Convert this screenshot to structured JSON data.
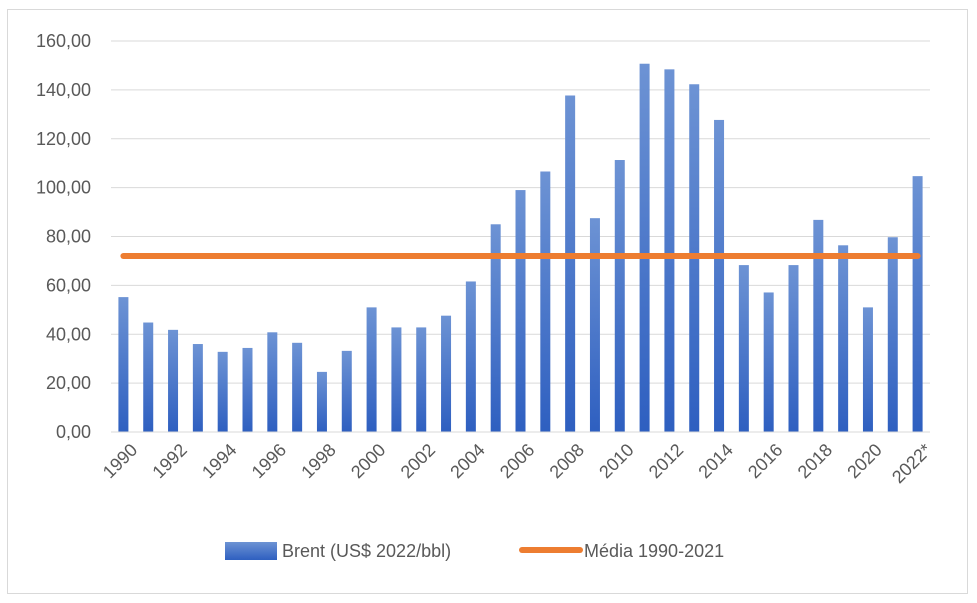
{
  "chart_data": {
    "type": "bar",
    "title": "",
    "xlabel": "",
    "ylabel": "",
    "categories": [
      "1990",
      "1991",
      "1992",
      "1993",
      "1994",
      "1995",
      "1996",
      "1997",
      "1998",
      "1999",
      "2000",
      "2001",
      "2002",
      "2003",
      "2004",
      "2005",
      "2006",
      "2007",
      "2008",
      "2009",
      "2010",
      "2011",
      "2012",
      "2013",
      "2014",
      "2015",
      "2016",
      "2017",
      "2018",
      "2019",
      "2020",
      "2021",
      "2022*"
    ],
    "x_tick_labels": [
      "1990",
      "",
      "1992",
      "",
      "1994",
      "",
      "1996",
      "",
      "1998",
      "",
      "2000",
      "",
      "2002",
      "",
      "2004",
      "",
      "2006",
      "",
      "2008",
      "",
      "2010",
      "",
      "2012",
      "",
      "2014",
      "",
      "2016",
      "",
      "2018",
      "",
      "2020",
      "",
      "2022*"
    ],
    "series": [
      {
        "name": "Brent (US$ 2022/bbl)",
        "type": "bar",
        "color": "#4472c4",
        "values": [
          55.2,
          44.8,
          41.8,
          36.0,
          32.8,
          34.4,
          40.8,
          36.5,
          24.6,
          33.2,
          51.0,
          42.8,
          42.8,
          47.6,
          61.6,
          85.0,
          99.0,
          106.6,
          137.7,
          87.5,
          111.3,
          150.7,
          148.4,
          142.3,
          127.7,
          68.3,
          57.1,
          68.3,
          86.8,
          76.4,
          51.0,
          79.7,
          104.7
        ]
      },
      {
        "name": "Média 1990-2021",
        "type": "line",
        "color": "#ed7d31",
        "values": [
          72.0,
          72.0,
          72.0,
          72.0,
          72.0,
          72.0,
          72.0,
          72.0,
          72.0,
          72.0,
          72.0,
          72.0,
          72.0,
          72.0,
          72.0,
          72.0,
          72.0,
          72.0,
          72.0,
          72.0,
          72.0,
          72.0,
          72.0,
          72.0,
          72.0,
          72.0,
          72.0,
          72.0,
          72.0,
          72.0,
          72.0,
          72.0,
          72.0
        ]
      }
    ],
    "ylim": [
      0,
      160
    ],
    "y_ticks": [
      "0,00",
      "20,00",
      "40,00",
      "60,00",
      "80,00",
      "100,00",
      "120,00",
      "140,00",
      "160,00"
    ],
    "grid": true,
    "legend_position": "bottom"
  }
}
